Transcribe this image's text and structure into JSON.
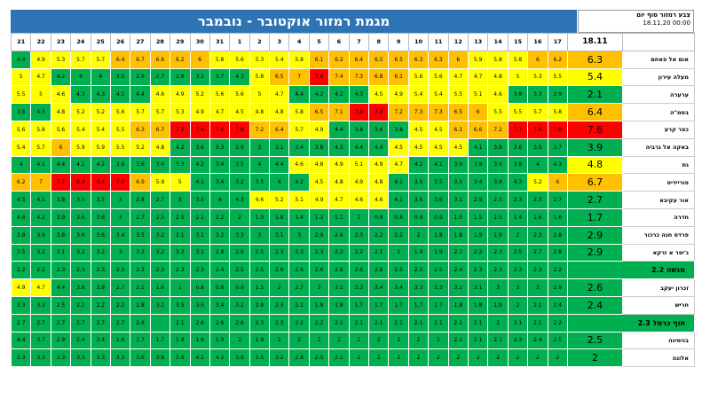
{
  "title": "מגמת רמזור אוקטובר - נובמבר",
  "legend": {
    "label": "צבע רמזור סוף יום",
    "date": "18.11.20 00:00"
  },
  "palette": {
    "G": "#00b050",
    "LG": "#92d050",
    "Y": "#ffff00",
    "O": "#ffc000",
    "DO": "#ff9900",
    "R": "#ff0000"
  },
  "days": [
    "21",
    "22",
    "23",
    "24",
    "25",
    "26",
    "27",
    "28",
    "29",
    "30",
    "31",
    "1",
    "2",
    "3",
    "4",
    "5",
    "6",
    "7",
    "8",
    "9",
    "10",
    "11",
    "12",
    "13",
    "14",
    "15",
    "16",
    "17"
  ],
  "current_header": "18.11",
  "rows": [
    {
      "city": "אום אל פאחם",
      "current": "6.3",
      "current_color": "O",
      "values": [
        "4.4",
        "4.9",
        "5.3",
        "5.7",
        "5.7",
        "6.4",
        "6.7",
        "6.6",
        "6.2",
        "6",
        "5.8",
        "5.6",
        "5.3",
        "5.4",
        "5.8",
        "6.1",
        "6.2",
        "6.4",
        "6.5",
        "6.5",
        "6.3",
        "6.3",
        "6",
        "5.9",
        "5.8",
        "5.8",
        "6",
        "6.2"
      ],
      "colors": [
        "G",
        "Y",
        "Y",
        "Y",
        "Y",
        "O",
        "O",
        "O",
        "O",
        "O",
        "Y",
        "Y",
        "Y",
        "Y",
        "Y",
        "O",
        "O",
        "O",
        "O",
        "O",
        "O",
        "O",
        "O",
        "Y",
        "Y",
        "Y",
        "O",
        "O"
      ]
    },
    {
      "city": "מעלה עירון",
      "current": "5.4",
      "current_color": "Y",
      "values": [
        "5",
        "4.7",
        "4.2",
        "4",
        "4",
        "3.5",
        "2.9",
        "2.7",
        "2.9",
        "3.1",
        "3.7",
        "4.3",
        "5.8",
        "6.5",
        "7",
        "7.6",
        "7.4",
        "7.3",
        "6.8",
        "6.1",
        "5.6",
        "5.6",
        "4.7",
        "4.7",
        "4.8",
        "5",
        "5.3",
        "5.5"
      ],
      "colors": [
        "Y",
        "Y",
        "G",
        "G",
        "G",
        "G",
        "G",
        "G",
        "G",
        "G",
        "G",
        "G",
        "Y",
        "O",
        "O",
        "R",
        "O",
        "O",
        "O",
        "O",
        "Y",
        "Y",
        "Y",
        "Y",
        "Y",
        "Y",
        "Y",
        "Y"
      ]
    },
    {
      "city": "ערערה",
      "current": "2.1",
      "current_color": "G",
      "values": [
        "5.5",
        "5",
        "4.6",
        "4.3",
        "4.3",
        "4.1",
        "4.4",
        "4.6",
        "4.9",
        "5.2",
        "5.6",
        "5.6",
        "5",
        "4.7",
        "4.4",
        "4.2",
        "4.2",
        "4.3",
        "4.5",
        "4.9",
        "5.4",
        "5.4",
        "5.5",
        "5.1",
        "4.6",
        "3.8",
        "3.3",
        "2.9"
      ],
      "colors": [
        "Y",
        "Y",
        "Y",
        "G",
        "G",
        "G",
        "G",
        "Y",
        "Y",
        "Y",
        "Y",
        "Y",
        "Y",
        "Y",
        "G",
        "G",
        "G",
        "G",
        "Y",
        "Y",
        "Y",
        "Y",
        "Y",
        "Y",
        "Y",
        "G",
        "G",
        "G"
      ]
    },
    {
      "city": "בסמ\"ה",
      "current": "6.4",
      "current_color": "O",
      "values": [
        "3.8",
        "4.3",
        "4.8",
        "5.2",
        "5.2",
        "5.6",
        "5.7",
        "5.7",
        "5.3",
        "4.9",
        "4.7",
        "4.5",
        "4.8",
        "4.8",
        "5.8",
        "6.5",
        "7.1",
        "7.8",
        "7.6",
        "7.2",
        "7.3",
        "7.3",
        "6.5",
        "6",
        "5.5",
        "5.5",
        "5.7",
        "5.8"
      ],
      "colors": [
        "G",
        "G",
        "Y",
        "Y",
        "Y",
        "Y",
        "Y",
        "Y",
        "Y",
        "Y",
        "Y",
        "Y",
        "Y",
        "Y",
        "Y",
        "O",
        "O",
        "R",
        "R",
        "O",
        "O",
        "O",
        "O",
        "O",
        "Y",
        "Y",
        "Y",
        "Y"
      ]
    },
    {
      "city": "כפר קרע",
      "current": "7.6",
      "current_color": "R",
      "values": [
        "5.6",
        "5.8",
        "5.6",
        "5.4",
        "5.4",
        "5.5",
        "6.3",
        "6.7",
        "7.2",
        "7.4",
        "7.6",
        "7.8",
        "7.2",
        "6.4",
        "5.7",
        "4.9",
        "4.4",
        "3.8",
        "3.6",
        "3.8",
        "4.5",
        "4.5",
        "6.1",
        "6.6",
        "7.2",
        "7.7",
        "7.8",
        "7.9"
      ],
      "colors": [
        "Y",
        "Y",
        "Y",
        "Y",
        "Y",
        "Y",
        "O",
        "O",
        "R",
        "R",
        "R",
        "R",
        "O",
        "O",
        "Y",
        "Y",
        "G",
        "G",
        "G",
        "G",
        "Y",
        "Y",
        "O",
        "O",
        "O",
        "R",
        "R",
        "R"
      ]
    },
    {
      "city": "באקה אל גרביה",
      "current": "3.9",
      "current_color": "G",
      "values": [
        "5.4",
        "5.7",
        "6",
        "5.9",
        "5.9",
        "5.5",
        "5.2",
        "4.8",
        "4.2",
        "3.6",
        "3.3",
        "2.9",
        "3",
        "3.1",
        "3.4",
        "3.8",
        "4.3",
        "4.4",
        "4.4",
        "4.5",
        "4.5",
        "4.5",
        "4.5",
        "4.1",
        "3.8",
        "3.6",
        "3.5",
        "3.7"
      ],
      "colors": [
        "Y",
        "Y",
        "O",
        "Y",
        "Y",
        "Y",
        "Y",
        "Y",
        "G",
        "G",
        "G",
        "G",
        "G",
        "G",
        "G",
        "G",
        "G",
        "G",
        "G",
        "Y",
        "Y",
        "Y",
        "Y",
        "G",
        "G",
        "G",
        "G",
        "G"
      ]
    },
    {
      "city": "גת",
      "current": "4.8",
      "current_color": "Y",
      "values": [
        "4",
        "4.1",
        "4.4",
        "4.2",
        "4.2",
        "3.8",
        "3.6",
        "3.4",
        "3.3",
        "4.2",
        "3.4",
        "3.5",
        "4",
        "4.4",
        "4.6",
        "4.8",
        "4.9",
        "5.1",
        "4.9",
        "4.7",
        "4.2",
        "4.1",
        "3.9",
        "3.8",
        "3.6",
        "3.8",
        "4",
        "4.3"
      ],
      "colors": [
        "G",
        "G",
        "G",
        "G",
        "G",
        "G",
        "G",
        "G",
        "G",
        "G",
        "G",
        "G",
        "G",
        "G",
        "Y",
        "Y",
        "Y",
        "Y",
        "Y",
        "Y",
        "G",
        "G",
        "G",
        "G",
        "G",
        "G",
        "G",
        "G"
      ]
    },
    {
      "city": "פוריידיס",
      "current": "6.7",
      "current_color": "O",
      "values": [
        "6.2",
        "7",
        "7.7",
        "8.4",
        "8.4",
        "7.6",
        "6.9",
        "5.9",
        "5",
        "4.1",
        "3.4",
        "3.2",
        "3.5",
        "4",
        "4.2",
        "4.5",
        "4.8",
        "4.9",
        "4.8",
        "4.1",
        "3.5",
        "3.5",
        "3.5",
        "3.4",
        "3.8",
        "4.3",
        "5.2",
        "6"
      ],
      "colors": [
        "O",
        "O",
        "R",
        "R",
        "R",
        "R",
        "O",
        "Y",
        "Y",
        "G",
        "G",
        "G",
        "G",
        "G",
        "G",
        "Y",
        "Y",
        "Y",
        "Y",
        "G",
        "G",
        "G",
        "G",
        "G",
        "G",
        "G",
        "Y",
        "O"
      ]
    },
    {
      "city": "אור עקיבא",
      "current": "2.7",
      "current_color": "G",
      "values": [
        "4.5",
        "4.1",
        "3.8",
        "3.5",
        "3.5",
        "3",
        "2.8",
        "2.7",
        "3",
        "3.5",
        "4",
        "4.3",
        "4.6",
        "5.2",
        "5.1",
        "4.9",
        "4.7",
        "4.6",
        "4.6",
        "4.1",
        "3.6",
        "3.6",
        "3.1",
        "2.9",
        "2.5",
        "2.3",
        "2.3",
        "2.7"
      ],
      "colors": [
        "G",
        "G",
        "G",
        "G",
        "G",
        "G",
        "G",
        "G",
        "G",
        "G",
        "G",
        "G",
        "Y",
        "Y",
        "Y",
        "Y",
        "Y",
        "Y",
        "Y",
        "G",
        "G",
        "G",
        "G",
        "G",
        "G",
        "G",
        "G",
        "G"
      ]
    },
    {
      "city": "חדרה",
      "current": "1.7",
      "current_color": "G",
      "values": [
        "4.6",
        "4.2",
        "3.9",
        "3.6",
        "3.6",
        "3",
        "2.7",
        "2.5",
        "2.5",
        "2.1",
        "2.2",
        "2",
        "1.9",
        "1.8",
        "1.4",
        "1.2",
        "1.1",
        "1",
        "0.9",
        "0.8",
        "0.9",
        "0.9",
        "1.5",
        "1.5",
        "1.5",
        "1.4",
        "1.6",
        "1.6"
      ],
      "colors": [
        "G",
        "G",
        "G",
        "G",
        "G",
        "G",
        "G",
        "G",
        "G",
        "G",
        "G",
        "G",
        "G",
        "G",
        "G",
        "G",
        "G",
        "G",
        "G",
        "G",
        "G",
        "G",
        "G",
        "G",
        "G",
        "G",
        "G",
        "G"
      ]
    },
    {
      "city": "פרדס חנה כרכור",
      "current": "2.9",
      "current_color": "G",
      "values": [
        "3.8",
        "3.9",
        "3.8",
        "3.6",
        "3.6",
        "3.4",
        "3.5",
        "3.2",
        "3.1",
        "3.1",
        "3.2",
        "3.3",
        "3",
        "3.1",
        "3",
        "2.9",
        "2.6",
        "2.3",
        "2.2",
        "2.2",
        "2",
        "1.8",
        "1.8",
        "1.9",
        "1.9",
        "2",
        "2.3",
        "2.8"
      ],
      "colors": [
        "G",
        "G",
        "G",
        "G",
        "G",
        "G",
        "G",
        "G",
        "G",
        "G",
        "G",
        "G",
        "G",
        "G",
        "G",
        "G",
        "G",
        "G",
        "G",
        "G",
        "G",
        "G",
        "G",
        "G",
        "G",
        "G",
        "G",
        "G"
      ]
    },
    {
      "city": "ג'יסר א זרקא",
      "current": "2.9",
      "current_color": "G",
      "values": [
        "3.5",
        "3.2",
        "3.1",
        "3.2",
        "3.2",
        "3",
        "3.3",
        "3.2",
        "3.2",
        "3.1",
        "2.8",
        "2.6",
        "2.5",
        "2.3",
        "2.3",
        "2.3",
        "2.2",
        "2.2",
        "2.1",
        "2",
        "1.9",
        "1.9",
        "2.1",
        "2.2",
        "2.3",
        "2.5",
        "2.7",
        "2.8"
      ],
      "colors": [
        "G",
        "G",
        "G",
        "G",
        "G",
        "G",
        "G",
        "G",
        "G",
        "G",
        "G",
        "G",
        "G",
        "G",
        "G",
        "G",
        "G",
        "G",
        "G",
        "G",
        "G",
        "G",
        "G",
        "G",
        "G",
        "G",
        "G",
        "G"
      ]
    },
    {
      "city": "מנשה",
      "current": "2.2",
      "current_color": "G",
      "span_city": true,
      "values": [
        "2.2",
        "2.2",
        "2.3",
        "2.3",
        "2.3",
        "2.3",
        "2.3",
        "2.3",
        "2.3",
        "2.3",
        "2.4",
        "2.5",
        "2.5",
        "2.6",
        "2.6",
        "2.6",
        "2.6",
        "2.6",
        "2.6",
        "2.5",
        "2.5",
        "2.5",
        "2.4",
        "2.3",
        "2.3",
        "2.3",
        "2.3",
        "2.2"
      ],
      "colors": [
        "G",
        "G",
        "G",
        "G",
        "G",
        "G",
        "G",
        "G",
        "G",
        "G",
        "G",
        "G",
        "G",
        "G",
        "G",
        "G",
        "G",
        "G",
        "G",
        "G",
        "G",
        "G",
        "G",
        "G",
        "G",
        "G",
        "G",
        "G"
      ]
    },
    {
      "city": "זכרון יעקב",
      "current": "2.6",
      "current_color": "G",
      "values": [
        "4.9",
        "4.7",
        "4.4",
        "3.8",
        "3.8",
        "2.7",
        "2.1",
        "1.6",
        "1",
        "0.8",
        "0.8",
        "0.9",
        "1.5",
        "2",
        "2.7",
        "3",
        "3.1",
        "3.3",
        "3.4",
        "3.4",
        "3.3",
        "3.3",
        "3.2",
        "3.1",
        "3",
        "3",
        "3",
        "2.9"
      ],
      "colors": [
        "Y",
        "Y",
        "G",
        "G",
        "G",
        "G",
        "G",
        "G",
        "G",
        "G",
        "G",
        "G",
        "G",
        "G",
        "G",
        "G",
        "G",
        "G",
        "G",
        "G",
        "G",
        "G",
        "G",
        "G",
        "G",
        "G",
        "G",
        "G"
      ]
    },
    {
      "city": "חריש",
      "current": "2.4",
      "current_color": "G",
      "values": [
        "3.3",
        "3.3",
        "2.5",
        "2.2",
        "2.2",
        "2.2",
        "2.8",
        "3.1",
        "3.5",
        "3.5",
        "3.4",
        "3.2",
        "2.8",
        "2.3",
        "2.1",
        "1.9",
        "1.8",
        "1.7",
        "1.7",
        "1.7",
        "1.7",
        "1.7",
        "1.8",
        "1.8",
        "1.9",
        "2",
        "2.1",
        "2.4"
      ],
      "colors": [
        "G",
        "G",
        "G",
        "G",
        "G",
        "G",
        "G",
        "G",
        "G",
        "G",
        "G",
        "G",
        "G",
        "G",
        "G",
        "G",
        "G",
        "G",
        "G",
        "G",
        "G",
        "G",
        "G",
        "G",
        "G",
        "G",
        "G",
        "G"
      ]
    },
    {
      "city": "חוף כרמל",
      "current": "2.3",
      "current_color": "G",
      "span_city": true,
      "values": [
        "2.7",
        "2.7",
        "2.7",
        "2.7",
        "2.7",
        "2.7",
        "2.6",
        "",
        "2.1",
        "2.6",
        "2.6",
        "2.6",
        "2.3",
        "2.3",
        "2.2",
        "2.2",
        "2.1",
        "2.1",
        "2.1",
        "2.1",
        "2.1",
        "2.1",
        "2.1",
        "2.1",
        "2",
        "2.1",
        "2.1",
        "2.2"
      ],
      "colors": [
        "G",
        "G",
        "G",
        "G",
        "G",
        "G",
        "G",
        "G",
        "G",
        "G",
        "G",
        "G",
        "G",
        "G",
        "G",
        "G",
        "G",
        "G",
        "G",
        "G",
        "G",
        "G",
        "G",
        "G",
        "G",
        "G",
        "G",
        "G"
      ]
    },
    {
      "city": "בנימינה",
      "current": "2.5",
      "current_color": "G",
      "values": [
        "4.4",
        "3.7",
        "2.9",
        "2.4",
        "2.4",
        "1.6",
        "1.7",
        "1.7",
        "1.8",
        "1.9",
        "1.9",
        "2",
        "1.9",
        "2",
        "2",
        "2",
        "2",
        "2",
        "2",
        "2",
        "2",
        "2",
        "2.1",
        "2.1",
        "2.1",
        "2.3",
        "2.4",
        "2.5"
      ],
      "colors": [
        "G",
        "G",
        "G",
        "G",
        "G",
        "G",
        "G",
        "G",
        "G",
        "G",
        "G",
        "G",
        "G",
        "G",
        "G",
        "G",
        "G",
        "G",
        "G",
        "G",
        "G",
        "G",
        "G",
        "G",
        "G",
        "G",
        "G",
        "G"
      ]
    },
    {
      "city": "אלונה",
      "current": "2",
      "current_color": "G",
      "values": [
        "3.3",
        "3.3",
        "3.3",
        "3.3",
        "3.3",
        "3.3",
        "3.6",
        "3.8",
        "3.9",
        "4.1",
        "4.2",
        "3.8",
        "3.5",
        "3.2",
        "2.8",
        "2.5",
        "2.1",
        "2",
        "2",
        "2",
        "2",
        "2",
        "2",
        "2",
        "2",
        "2",
        "2",
        "2"
      ],
      "colors": [
        "G",
        "G",
        "G",
        "G",
        "G",
        "G",
        "G",
        "G",
        "G",
        "G",
        "G",
        "G",
        "G",
        "G",
        "G",
        "G",
        "G",
        "G",
        "G",
        "G",
        "G",
        "G",
        "G",
        "G",
        "G",
        "G",
        "G",
        "G"
      ]
    }
  ]
}
